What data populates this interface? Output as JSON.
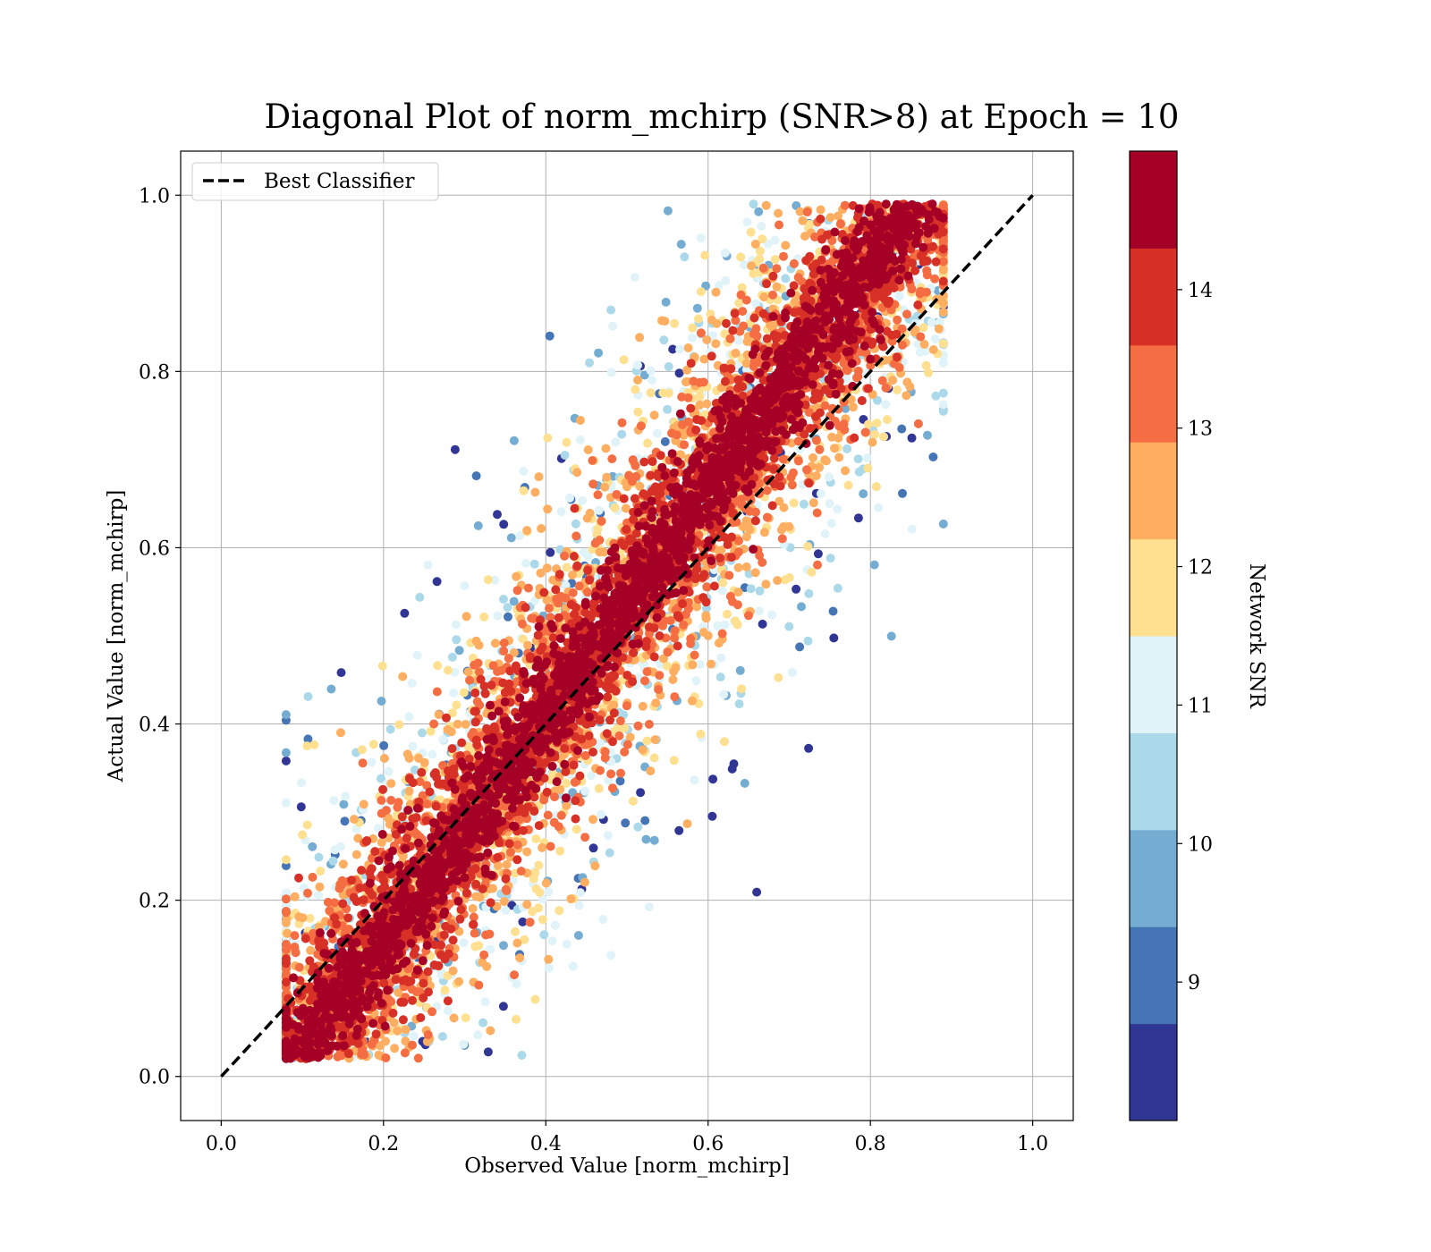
{
  "chart_data": {
    "type": "scatter",
    "title": "Diagonal Plot of norm_mchirp (SNR>8) at Epoch = 10",
    "xlabel": "Observed Value [norm_mchirp]",
    "ylabel": "Actual Value [norm_mchirp]",
    "xlim": [
      -0.05,
      1.05
    ],
    "ylim": [
      -0.05,
      1.05
    ],
    "x_ticks": [
      "0.0",
      "0.2",
      "0.4",
      "0.6",
      "0.8",
      "1.0"
    ],
    "y_ticks": [
      "0.0",
      "0.2",
      "0.4",
      "0.6",
      "0.8",
      "1.0"
    ],
    "x_tick_values": [
      0.0,
      0.2,
      0.4,
      0.6,
      0.8,
      1.0
    ],
    "y_tick_values": [
      0.0,
      0.2,
      0.4,
      0.6,
      0.8,
      1.0
    ],
    "grid": true,
    "legend": {
      "placement": "top-left",
      "entries": [
        {
          "label": "Best Classifier",
          "style": "dashed",
          "color": "#000000"
        }
      ]
    },
    "reference_line": {
      "name": "Best Classifier",
      "x": [
        0.0,
        1.0
      ],
      "y": [
        0.0,
        1.0
      ],
      "style": "dashed",
      "color": "#000000"
    },
    "scatter_description": {
      "observed_range": [
        0.08,
        0.89
      ],
      "actual_range": [
        0.0,
        1.0
      ],
      "high_snr_along_diagonal": true,
      "low_snr_spread_off_diagonal": true,
      "approx_point_count": 20000
    },
    "colorbar": {
      "label": "Network SNR",
      "range": [
        8.0,
        15.0
      ],
      "ticks": [
        "9",
        "10",
        "11",
        "12",
        "13",
        "14"
      ],
      "tick_values": [
        9,
        10,
        11,
        12,
        13,
        14
      ],
      "bins": [
        {
          "from": 8.0,
          "to": 8.7,
          "color": "#313695"
        },
        {
          "from": 8.7,
          "to": 9.4,
          "color": "#4575b4"
        },
        {
          "from": 9.4,
          "to": 10.1,
          "color": "#74add1"
        },
        {
          "from": 10.1,
          "to": 10.8,
          "color": "#abd9e9"
        },
        {
          "from": 10.8,
          "to": 11.5,
          "color": "#e0f3f8"
        },
        {
          "from": 11.5,
          "to": 12.2,
          "color": "#fee090"
        },
        {
          "from": 12.2,
          "to": 12.9,
          "color": "#fdae61"
        },
        {
          "from": 12.9,
          "to": 13.6,
          "color": "#f46d43"
        },
        {
          "from": 13.6,
          "to": 14.3,
          "color": "#d73027"
        },
        {
          "from": 14.3,
          "to": 15.0,
          "color": "#a50026"
        }
      ]
    }
  }
}
